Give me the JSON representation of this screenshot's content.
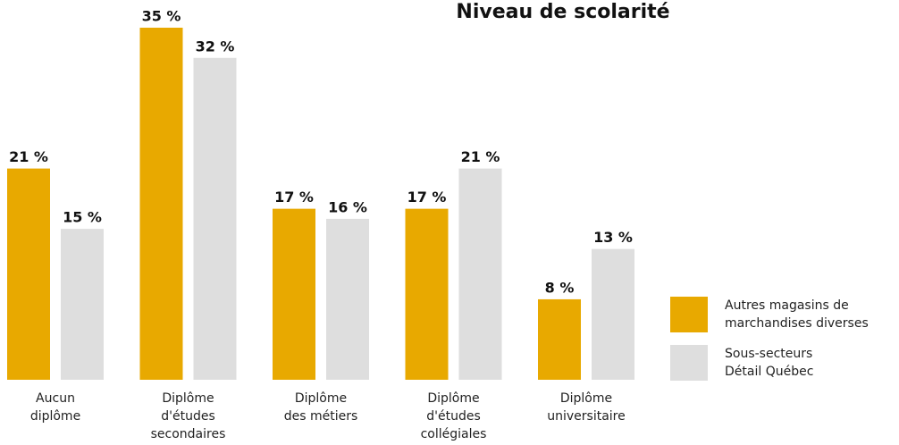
{
  "chart_data": {
    "type": "bar",
    "title": "Niveau de scolarité",
    "categories": [
      "Aucun\ndiplôme",
      "Diplôme\nd'études\nsecondaires",
      "Diplôme\ndes métiers",
      "Diplôme\nd'études\ncollégiales",
      "Diplôme\nuniversitaire"
    ],
    "series": [
      {
        "name": "Autres magasins de\nmarchandises diverses",
        "color": "#e8a900",
        "values": [
          21,
          35,
          17,
          17,
          8
        ],
        "value_labels": [
          "21 %",
          "35 %",
          "17 %",
          "17 %",
          "8 %"
        ]
      },
      {
        "name": "Sous-secteurs\nDétail Québec",
        "color": "#dedede",
        "values": [
          15,
          32,
          16,
          21,
          13
        ],
        "value_labels": [
          "15 %",
          "32 %",
          "16 %",
          "21 %",
          "13 %"
        ]
      }
    ]
  }
}
